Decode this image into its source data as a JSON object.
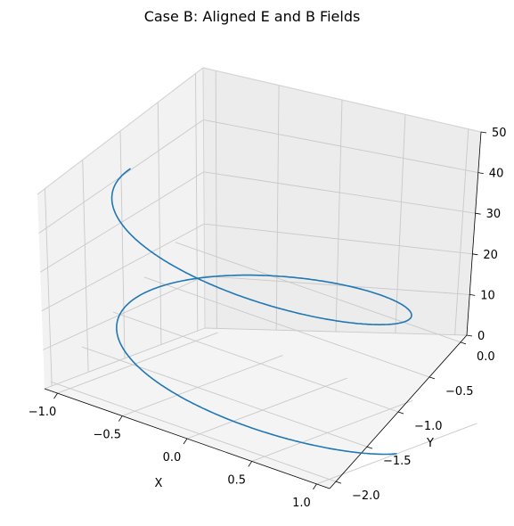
{
  "chart_data": {
    "type": "line3d",
    "title": "Case B: Aligned E and B Fields",
    "xlabel": "X",
    "ylabel": "Y",
    "zlabel": "",
    "x_ticks": [
      "−1.0",
      "−0.5",
      "0.0",
      "0.5",
      "1.0"
    ],
    "y_ticks": [
      "0.0",
      "−0.5",
      "−1.0",
      "−1.5",
      "−2.0"
    ],
    "z_ticks": [
      "0",
      "10",
      "20",
      "30",
      "40",
      "50"
    ],
    "xlim": [
      -1.1,
      1.1
    ],
    "ylim": [
      -2.1,
      0.1
    ],
    "zlim": [
      0,
      50
    ],
    "grid": true,
    "series": [
      {
        "color": "#1f77b4",
        "curve": "helix",
        "x_range": [
          -1.0,
          1.0
        ],
        "y_range": [
          -2.0,
          0.0
        ],
        "z_range": [
          0,
          50
        ],
        "turns": 1.5
      }
    ]
  }
}
